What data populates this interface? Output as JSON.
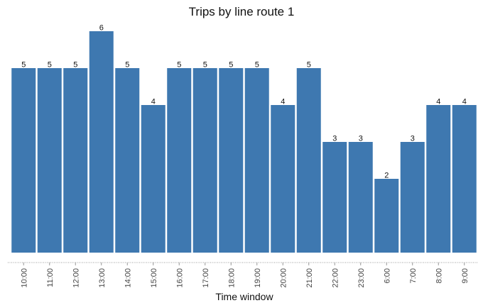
{
  "chart_data": {
    "type": "bar",
    "title": "Trips by line route 1",
    "xlabel": "Time window",
    "ylabel": "",
    "categories": [
      "10:00",
      "11:00",
      "12:00",
      "13:00",
      "14:00",
      "15:00",
      "16:00",
      "17:00",
      "18:00",
      "19:00",
      "20:00",
      "21:00",
      "22:00",
      "23:00",
      "6:00",
      "7:00",
      "8:00",
      "9:00"
    ],
    "values": [
      5,
      5,
      5,
      6,
      5,
      4,
      5,
      5,
      5,
      5,
      4,
      5,
      3,
      3,
      2,
      3,
      4,
      4
    ],
    "ylim": [
      0,
      6
    ],
    "grid": false,
    "legend": "none",
    "bar_color": "#3e78b0",
    "axis_color": "#999999"
  }
}
